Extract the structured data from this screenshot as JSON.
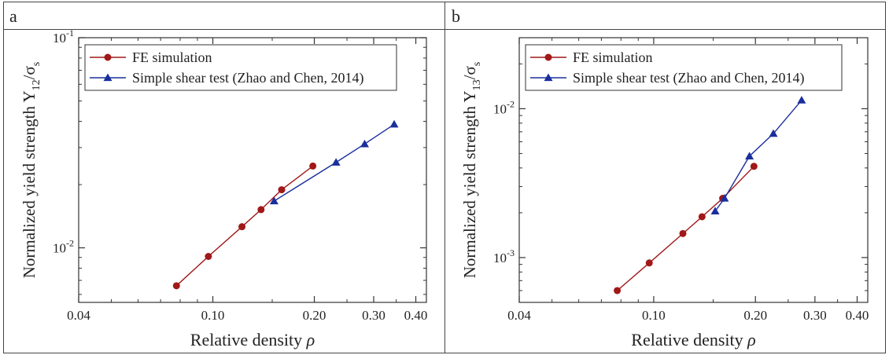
{
  "panels": [
    {
      "label": "a"
    },
    {
      "label": "b"
    }
  ],
  "colors": {
    "fe": "#a01818",
    "shear": "#1a2f9c",
    "axis": "#333333",
    "frame": "#444444"
  },
  "chart_data": [
    {
      "type": "line",
      "title": "",
      "xlabel": "Relative density",
      "xsymbol": "ρ",
      "ylabel_main": "Normalized yield strength Y",
      "ylabel_sub": "12",
      "ylabel_den": "/σ",
      "ylabel_den_sub": "s",
      "xscale": "log",
      "yscale": "log",
      "xlim": [
        0.04,
        0.43
      ],
      "ylim": [
        0.0055,
        0.1
      ],
      "xticks": [
        0.04,
        0.1,
        0.2,
        0.3,
        0.4
      ],
      "xtick_labels": [
        "0.04",
        "0.10",
        "0.20",
        "0.30",
        "0.40"
      ],
      "yticks": [
        0.01,
        0.1
      ],
      "ytick_labels": [
        {
          "base": "10",
          "exp": "-2"
        },
        {
          "base": "10",
          "exp": "-1"
        }
      ],
      "legend_position": "top-left",
      "series": [
        {
          "name": "FE simulation",
          "marker": "circle",
          "color": "#a01818",
          "x": [
            0.078,
            0.097,
            0.122,
            0.139,
            0.16,
            0.198
          ],
          "y": [
            0.0066,
            0.0091,
            0.0126,
            0.0152,
            0.0189,
            0.0245
          ]
        },
        {
          "name": "Simple shear test (Zhao and Chen, 2014)",
          "marker": "triangle",
          "color": "#1a2f9c",
          "x": [
            0.152,
            0.232,
            0.282,
            0.345
          ],
          "y": [
            0.0167,
            0.0255,
            0.0312,
            0.0387
          ]
        }
      ]
    },
    {
      "type": "line",
      "title": "",
      "xlabel": "Relative density",
      "xsymbol": "ρ",
      "ylabel_main": "Normalized yield strength Y",
      "ylabel_sub": "13",
      "ylabel_den": "/σ",
      "ylabel_den_sub": "s",
      "xscale": "log",
      "yscale": "log",
      "xlim": [
        0.04,
        0.43
      ],
      "ylim": [
        0.0005,
        0.03
      ],
      "xticks": [
        0.04,
        0.1,
        0.2,
        0.3,
        0.4
      ],
      "xtick_labels": [
        "0.04",
        "0.10",
        "0.20",
        "0.30",
        "0.40"
      ],
      "yticks": [
        0.001,
        0.01
      ],
      "ytick_labels": [
        {
          "base": "10",
          "exp": "-3"
        },
        {
          "base": "10",
          "exp": "-2"
        }
      ],
      "legend_position": "top-left",
      "series": [
        {
          "name": "FE simulation",
          "marker": "circle",
          "color": "#a01818",
          "x": [
            0.078,
            0.097,
            0.122,
            0.139,
            0.16,
            0.198
          ],
          "y": [
            0.0006,
            0.00092,
            0.00145,
            0.00188,
            0.0025,
            0.0041
          ]
        },
        {
          "name": "Simple shear test (Zhao and Chen, 2014)",
          "marker": "triangle",
          "color": "#1a2f9c",
          "x": [
            0.152,
            0.162,
            0.192,
            0.226,
            0.274
          ],
          "y": [
            0.00205,
            0.0025,
            0.0048,
            0.0068,
            0.0114
          ]
        }
      ]
    }
  ]
}
